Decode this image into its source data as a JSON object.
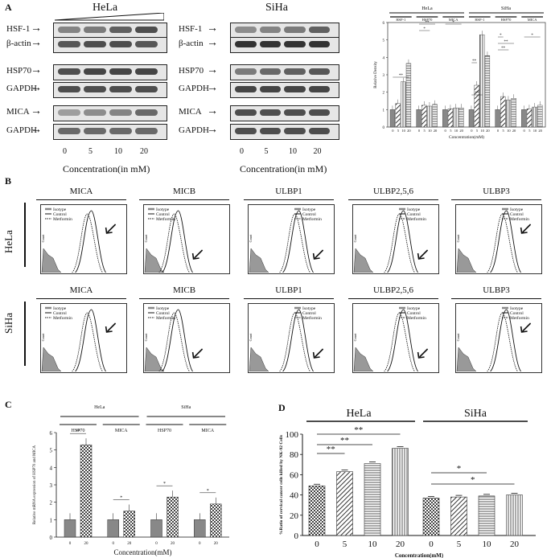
{
  "panelA": {
    "letter": "A",
    "hela": {
      "title": "HeLa",
      "rows": [
        "HSF-1",
        "β-actin",
        "HSP70",
        "GAPDH",
        "MICA",
        "GAPDH"
      ],
      "concentrations": [
        "0",
        "5",
        "10",
        "20"
      ],
      "xlabel": "Concentration(in mM)"
    },
    "siha": {
      "title": "SiHa",
      "rows": [
        "HSF-1",
        "β-actin",
        "HSP70",
        "GAPDH",
        "MICA",
        "GAPDH"
      ],
      "concentrations": [
        "0",
        "5",
        "10",
        "20"
      ],
      "xlabel": "Concentration(in mM)"
    }
  },
  "panelB": {
    "letter": "B",
    "markers": [
      "MICA",
      "MICB",
      "ULBP1",
      "ULBP2,5,6",
      "ULBP3"
    ],
    "cell_lines": [
      "HeLa",
      "SiHa"
    ],
    "legend": [
      "Isotype",
      "Control",
      "Metformin"
    ],
    "y_axis_label": "Count"
  },
  "panelC": {
    "letter": "C"
  },
  "panelD": {
    "letter": "D"
  },
  "chart_data": [
    {
      "type": "bar",
      "title": "",
      "groups_top": [
        "HeLa",
        "SiHa"
      ],
      "subgroups": [
        "HSF-1",
        "HSP70",
        "MICA",
        "HSF-1",
        "HSP70",
        "MICA"
      ],
      "categories": [
        "0",
        "5",
        "10",
        "20"
      ],
      "series": [
        {
          "values": [
            1.0,
            1.35,
            2.6,
            3.65
          ]
        },
        {
          "values": [
            1.0,
            1.25,
            1.2,
            1.3
          ]
        },
        {
          "values": [
            1.0,
            1.05,
            1.1,
            1.1
          ]
        },
        {
          "values": [
            1.0,
            2.4,
            5.3,
            4.1
          ]
        },
        {
          "values": [
            1.0,
            1.75,
            1.55,
            1.65
          ]
        },
        {
          "values": [
            1.0,
            1.05,
            1.15,
            1.25
          ]
        }
      ],
      "xlabel": "Concentration(mM)",
      "ylabel": "Relative Density",
      "ylim": [
        0,
        6
      ],
      "yticks": [
        "0",
        "1",
        "2",
        "3",
        "4",
        "5",
        "6"
      ],
      "significance": [
        "**",
        "*",
        "**",
        "*",
        "**",
        "**",
        "*",
        "**",
        "**",
        "*"
      ]
    },
    {
      "type": "bar",
      "title": "",
      "groups_top": [
        "HeLa",
        "SiHa"
      ],
      "subgroups": [
        "HSP70",
        "MICA",
        "HSP70",
        "MICA"
      ],
      "categories": [
        "0",
        "20"
      ],
      "series": [
        {
          "values": [
            1.0,
            5.3
          ]
        },
        {
          "values": [
            1.0,
            1.5
          ]
        },
        {
          "values": [
            1.0,
            2.3
          ]
        },
        {
          "values": [
            1.0,
            1.9
          ]
        }
      ],
      "xlabel": "Concentration(mM)",
      "ylabel": "Relative mRNA expression of HSP70 and MICA",
      "ylim": [
        0,
        6
      ],
      "yticks": [
        "0",
        "1",
        "2",
        "3",
        "4",
        "5",
        "6"
      ],
      "significance": [
        "**",
        "*",
        "*",
        "*"
      ]
    },
    {
      "type": "bar",
      "title": "",
      "groups_top": [
        "HeLa",
        "SiHa"
      ],
      "categories": [
        "0",
        "5",
        "10",
        "20",
        "0",
        "5",
        "10",
        "20"
      ],
      "values": [
        49,
        63,
        71,
        86,
        37,
        38,
        39,
        40
      ],
      "xlabel": "Concentration(mM)",
      "ylabel": "%Ratio of cervical cancer cells killed by NK-92 Cells",
      "ylim": [
        0,
        100
      ],
      "yticks": [
        "0",
        "20",
        "40",
        "60",
        "80",
        "100"
      ],
      "significance": [
        "**",
        "**",
        "**",
        "*",
        "*"
      ]
    }
  ]
}
